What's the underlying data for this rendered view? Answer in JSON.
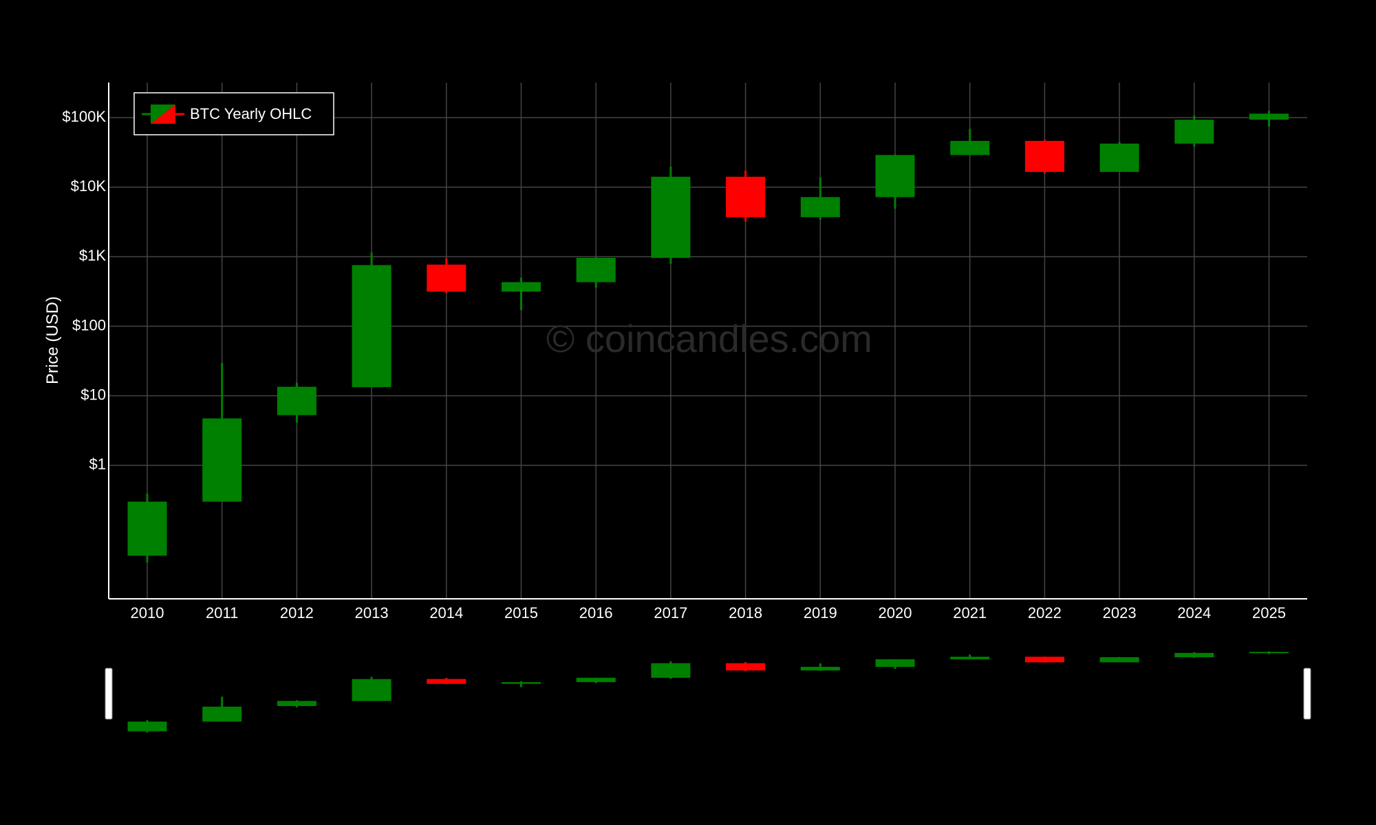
{
  "chart_data": {
    "type": "candlestick",
    "x_categories": [
      "2010",
      "2011",
      "2012",
      "2013",
      "2014",
      "2015",
      "2016",
      "2017",
      "2018",
      "2019",
      "2020",
      "2021",
      "2022",
      "2023",
      "2024",
      "2025"
    ],
    "series": [
      {
        "name": "BTC Yearly OHLC",
        "ohlc": [
          {
            "x": "2010",
            "open": 0.05,
            "high": 0.39,
            "low": 0.04,
            "close": 0.3
          },
          {
            "x": "2011",
            "open": 0.3,
            "high": 29.6,
            "low": 0.3,
            "close": 4.72
          },
          {
            "x": "2012",
            "open": 5.27,
            "high": 15.4,
            "low": 4.1,
            "close": 13.45
          },
          {
            "x": "2013",
            "open": 13.3,
            "high": 1150,
            "low": 13.3,
            "close": 757
          },
          {
            "x": "2014",
            "open": 770,
            "high": 950,
            "low": 300,
            "close": 314
          },
          {
            "x": "2015",
            "open": 315,
            "high": 500,
            "low": 170,
            "close": 430
          },
          {
            "x": "2016",
            "open": 430,
            "high": 980,
            "low": 360,
            "close": 963
          },
          {
            "x": "2017",
            "open": 960,
            "high": 19800,
            "low": 790,
            "close": 14100
          },
          {
            "x": "2018",
            "open": 14100,
            "high": 17300,
            "low": 3200,
            "close": 3700
          },
          {
            "x": "2019",
            "open": 3700,
            "high": 13800,
            "low": 3400,
            "close": 7200
          },
          {
            "x": "2020",
            "open": 7200,
            "high": 29300,
            "low": 4900,
            "close": 29000
          },
          {
            "x": "2021",
            "open": 29000,
            "high": 69000,
            "low": 28800,
            "close": 46300
          },
          {
            "x": "2022",
            "open": 46300,
            "high": 48000,
            "low": 15600,
            "close": 16550
          },
          {
            "x": "2023",
            "open": 16550,
            "high": 44700,
            "low": 16500,
            "close": 42300
          },
          {
            "x": "2024",
            "open": 42300,
            "high": 108000,
            "low": 38500,
            "close": 93400
          },
          {
            "x": "2025",
            "open": 93400,
            "high": 125000,
            "low": 74500,
            "close": 114000
          }
        ]
      }
    ],
    "ylabel": "Price (USD)",
    "y_scale": "log",
    "ylim": [
      0.012,
      320000
    ],
    "y_ticks": [
      {
        "value": 1,
        "label": "$1"
      },
      {
        "value": 10,
        "label": "$10"
      },
      {
        "value": 100,
        "label": "$100"
      },
      {
        "value": 1000,
        "label": "$1K"
      },
      {
        "value": 10000,
        "label": "$10K"
      },
      {
        "value": 100000,
        "label": "$100K"
      }
    ],
    "grid": true,
    "legend_position": "top-left",
    "rangeslider": true,
    "watermark": "© coincandles.com",
    "colors": {
      "background": "#000000",
      "increasing": "#008000",
      "decreasing": "#ff0000",
      "grid": "#444444",
      "axis": "#ffffff",
      "text": "#ffffff",
      "watermark": "#2a2a2a"
    }
  }
}
